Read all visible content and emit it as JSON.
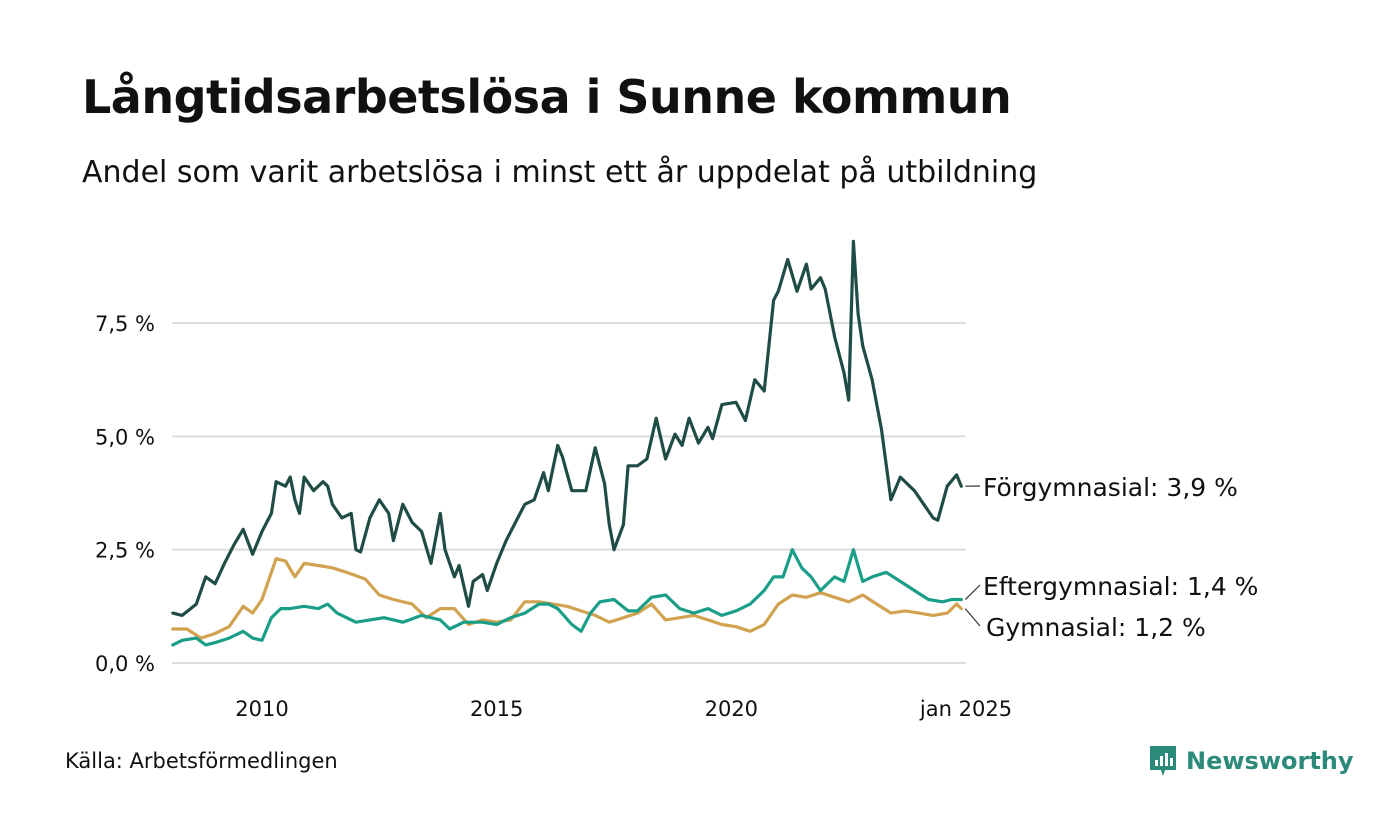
{
  "title": "Långtidsarbetslösa i Sunne kommun",
  "subtitle": "Andel som varit arbetslösa i minst ett år uppdelat på utbildning",
  "source": "Källa: Arbetsförmedlingen",
  "brand": "Newsworthy",
  "colors": {
    "forgymnasial": "#1f4d46",
    "eftergymnasial": "#1b9e87",
    "gymnasial": "#d1a24f",
    "grid": "#dddddd",
    "brand": "#2b8a7a"
  },
  "chart_data": {
    "type": "line",
    "title": "Långtidsarbetslösa i Sunne kommun",
    "xlabel": "",
    "ylabel": "",
    "xlim": [
      2008.1,
      2025.0
    ],
    "ylim": [
      0,
      9.5
    ],
    "y_ticks": [
      {
        "value": 0.0,
        "label": "0,0 %"
      },
      {
        "value": 2.5,
        "label": "2,5 %"
      },
      {
        "value": 5.0,
        "label": "5,0 %"
      },
      {
        "value": 7.5,
        "label": "7,5 %"
      }
    ],
    "x_ticks": [
      {
        "value": 2010,
        "label": "2010"
      },
      {
        "value": 2015,
        "label": "2015"
      },
      {
        "value": 2020,
        "label": "2020"
      },
      {
        "value": 2025,
        "label": "jan 2025"
      }
    ],
    "series": [
      {
        "name": "Förgymnasial",
        "key": "forgymnasial",
        "end_label": "Förgymnasial: 3,9 %",
        "points": [
          [
            2008.1,
            1.1
          ],
          [
            2008.3,
            1.05
          ],
          [
            2008.6,
            1.3
          ],
          [
            2008.8,
            1.9
          ],
          [
            2009.0,
            1.75
          ],
          [
            2009.2,
            2.2
          ],
          [
            2009.4,
            2.6
          ],
          [
            2009.6,
            2.95
          ],
          [
            2009.8,
            2.4
          ],
          [
            2010.0,
            2.9
          ],
          [
            2010.2,
            3.3
          ],
          [
            2010.3,
            4.0
          ],
          [
            2010.5,
            3.9
          ],
          [
            2010.6,
            4.1
          ],
          [
            2010.7,
            3.6
          ],
          [
            2010.8,
            3.3
          ],
          [
            2010.9,
            4.1
          ],
          [
            2011.1,
            3.8
          ],
          [
            2011.3,
            4.0
          ],
          [
            2011.4,
            3.9
          ],
          [
            2011.5,
            3.5
          ],
          [
            2011.7,
            3.2
          ],
          [
            2011.9,
            3.3
          ],
          [
            2012.0,
            2.5
          ],
          [
            2012.1,
            2.45
          ],
          [
            2012.3,
            3.2
          ],
          [
            2012.5,
            3.6
          ],
          [
            2012.7,
            3.3
          ],
          [
            2012.8,
            2.7
          ],
          [
            2013.0,
            3.5
          ],
          [
            2013.2,
            3.1
          ],
          [
            2013.4,
            2.9
          ],
          [
            2013.6,
            2.2
          ],
          [
            2013.8,
            3.3
          ],
          [
            2013.9,
            2.5
          ],
          [
            2014.1,
            1.9
          ],
          [
            2014.2,
            2.15
          ],
          [
            2014.4,
            1.25
          ],
          [
            2014.5,
            1.8
          ],
          [
            2014.7,
            1.95
          ],
          [
            2014.8,
            1.6
          ],
          [
            2015.0,
            2.2
          ],
          [
            2015.2,
            2.7
          ],
          [
            2015.4,
            3.1
          ],
          [
            2015.6,
            3.5
          ],
          [
            2015.8,
            3.6
          ],
          [
            2016.0,
            4.2
          ],
          [
            2016.1,
            3.8
          ],
          [
            2016.3,
            4.8
          ],
          [
            2016.4,
            4.55
          ],
          [
            2016.6,
            3.8
          ],
          [
            2016.9,
            3.8
          ],
          [
            2017.1,
            4.75
          ],
          [
            2017.3,
            3.95
          ],
          [
            2017.4,
            3.05
          ],
          [
            2017.5,
            2.5
          ],
          [
            2017.7,
            3.05
          ],
          [
            2017.8,
            4.35
          ],
          [
            2018.0,
            4.35
          ],
          [
            2018.2,
            4.5
          ],
          [
            2018.4,
            5.4
          ],
          [
            2018.6,
            4.5
          ],
          [
            2018.8,
            5.05
          ],
          [
            2018.95,
            4.8
          ],
          [
            2019.1,
            5.4
          ],
          [
            2019.3,
            4.85
          ],
          [
            2019.5,
            5.2
          ],
          [
            2019.6,
            4.95
          ],
          [
            2019.8,
            5.7
          ],
          [
            2020.1,
            5.75
          ],
          [
            2020.3,
            5.35
          ],
          [
            2020.5,
            6.25
          ],
          [
            2020.7,
            6.0
          ],
          [
            2020.9,
            8.0
          ],
          [
            2021.0,
            8.2
          ],
          [
            2021.2,
            8.9
          ],
          [
            2021.4,
            8.2
          ],
          [
            2021.6,
            8.8
          ],
          [
            2021.7,
            8.25
          ],
          [
            2021.9,
            8.5
          ],
          [
            2022.0,
            8.25
          ],
          [
            2022.2,
            7.2
          ],
          [
            2022.4,
            6.4
          ],
          [
            2022.5,
            5.8
          ],
          [
            2022.6,
            9.3
          ],
          [
            2022.7,
            7.7
          ],
          [
            2022.8,
            7.0
          ],
          [
            2023.0,
            6.25
          ],
          [
            2023.2,
            5.15
          ],
          [
            2023.4,
            3.6
          ],
          [
            2023.6,
            4.1
          ],
          [
            2023.9,
            3.8
          ],
          [
            2024.1,
            3.5
          ],
          [
            2024.3,
            3.2
          ],
          [
            2024.4,
            3.15
          ],
          [
            2024.6,
            3.9
          ],
          [
            2024.8,
            4.15
          ],
          [
            2024.9,
            3.9
          ]
        ]
      },
      {
        "name": "Eftergymnasial",
        "key": "eftergymnasial",
        "end_label": "Eftergymnasial: 1,4 %",
        "points": [
          [
            2008.1,
            0.4
          ],
          [
            2008.3,
            0.5
          ],
          [
            2008.6,
            0.55
          ],
          [
            2008.8,
            0.4
          ],
          [
            2009.0,
            0.45
          ],
          [
            2009.3,
            0.55
          ],
          [
            2009.6,
            0.7
          ],
          [
            2009.8,
            0.55
          ],
          [
            2010.0,
            0.5
          ],
          [
            2010.2,
            1.0
          ],
          [
            2010.4,
            1.2
          ],
          [
            2010.6,
            1.2
          ],
          [
            2010.9,
            1.25
          ],
          [
            2011.2,
            1.2
          ],
          [
            2011.4,
            1.3
          ],
          [
            2011.6,
            1.1
          ],
          [
            2012.0,
            0.9
          ],
          [
            2012.3,
            0.95
          ],
          [
            2012.6,
            1.0
          ],
          [
            2013.0,
            0.9
          ],
          [
            2013.4,
            1.05
          ],
          [
            2013.8,
            0.95
          ],
          [
            2014.0,
            0.75
          ],
          [
            2014.3,
            0.9
          ],
          [
            2014.7,
            0.9
          ],
          [
            2015.0,
            0.85
          ],
          [
            2015.3,
            1.0
          ],
          [
            2015.6,
            1.1
          ],
          [
            2015.9,
            1.3
          ],
          [
            2016.1,
            1.3
          ],
          [
            2016.3,
            1.2
          ],
          [
            2016.6,
            0.85
          ],
          [
            2016.8,
            0.7
          ],
          [
            2017.0,
            1.1
          ],
          [
            2017.2,
            1.35
          ],
          [
            2017.5,
            1.4
          ],
          [
            2017.8,
            1.15
          ],
          [
            2018.0,
            1.15
          ],
          [
            2018.3,
            1.45
          ],
          [
            2018.6,
            1.5
          ],
          [
            2018.9,
            1.2
          ],
          [
            2019.2,
            1.1
          ],
          [
            2019.5,
            1.2
          ],
          [
            2019.8,
            1.05
          ],
          [
            2020.1,
            1.15
          ],
          [
            2020.4,
            1.3
          ],
          [
            2020.7,
            1.6
          ],
          [
            2020.9,
            1.9
          ],
          [
            2021.1,
            1.9
          ],
          [
            2021.3,
            2.5
          ],
          [
            2021.5,
            2.1
          ],
          [
            2021.7,
            1.9
          ],
          [
            2021.9,
            1.6
          ],
          [
            2022.2,
            1.9
          ],
          [
            2022.4,
            1.8
          ],
          [
            2022.6,
            2.5
          ],
          [
            2022.8,
            1.8
          ],
          [
            2023.0,
            1.9
          ],
          [
            2023.3,
            2.0
          ],
          [
            2023.6,
            1.8
          ],
          [
            2023.9,
            1.6
          ],
          [
            2024.2,
            1.4
          ],
          [
            2024.5,
            1.35
          ],
          [
            2024.7,
            1.4
          ],
          [
            2024.9,
            1.4
          ]
        ]
      },
      {
        "name": "Gymnasial",
        "key": "gymnasial",
        "end_label": "Gymnasial: 1,2 %",
        "points": [
          [
            2008.1,
            0.75
          ],
          [
            2008.4,
            0.75
          ],
          [
            2008.7,
            0.55
          ],
          [
            2009.0,
            0.65
          ],
          [
            2009.3,
            0.8
          ],
          [
            2009.6,
            1.25
          ],
          [
            2009.8,
            1.1
          ],
          [
            2010.0,
            1.4
          ],
          [
            2010.3,
            2.3
          ],
          [
            2010.5,
            2.25
          ],
          [
            2010.7,
            1.9
          ],
          [
            2010.9,
            2.2
          ],
          [
            2011.2,
            2.15
          ],
          [
            2011.5,
            2.1
          ],
          [
            2011.8,
            2.0
          ],
          [
            2012.2,
            1.85
          ],
          [
            2012.5,
            1.5
          ],
          [
            2012.8,
            1.4
          ],
          [
            2013.2,
            1.3
          ],
          [
            2013.5,
            1.0
          ],
          [
            2013.8,
            1.2
          ],
          [
            2014.1,
            1.2
          ],
          [
            2014.4,
            0.85
          ],
          [
            2014.7,
            0.95
          ],
          [
            2015.0,
            0.9
          ],
          [
            2015.3,
            0.95
          ],
          [
            2015.6,
            1.35
          ],
          [
            2015.9,
            1.35
          ],
          [
            2016.2,
            1.3
          ],
          [
            2016.5,
            1.25
          ],
          [
            2016.8,
            1.15
          ],
          [
            2017.1,
            1.05
          ],
          [
            2017.4,
            0.9
          ],
          [
            2017.7,
            1.0
          ],
          [
            2018.0,
            1.1
          ],
          [
            2018.3,
            1.3
          ],
          [
            2018.6,
            0.95
          ],
          [
            2018.9,
            1.0
          ],
          [
            2019.2,
            1.05
          ],
          [
            2019.5,
            0.95
          ],
          [
            2019.8,
            0.85
          ],
          [
            2020.1,
            0.8
          ],
          [
            2020.4,
            0.7
          ],
          [
            2020.7,
            0.85
          ],
          [
            2021.0,
            1.3
          ],
          [
            2021.3,
            1.5
          ],
          [
            2021.6,
            1.45
          ],
          [
            2021.9,
            1.55
          ],
          [
            2022.2,
            1.45
          ],
          [
            2022.5,
            1.35
          ],
          [
            2022.8,
            1.5
          ],
          [
            2023.1,
            1.3
          ],
          [
            2023.4,
            1.1
          ],
          [
            2023.7,
            1.15
          ],
          [
            2024.0,
            1.1
          ],
          [
            2024.3,
            1.05
          ],
          [
            2024.6,
            1.1
          ],
          [
            2024.8,
            1.3
          ],
          [
            2024.9,
            1.2
          ]
        ]
      }
    ]
  }
}
